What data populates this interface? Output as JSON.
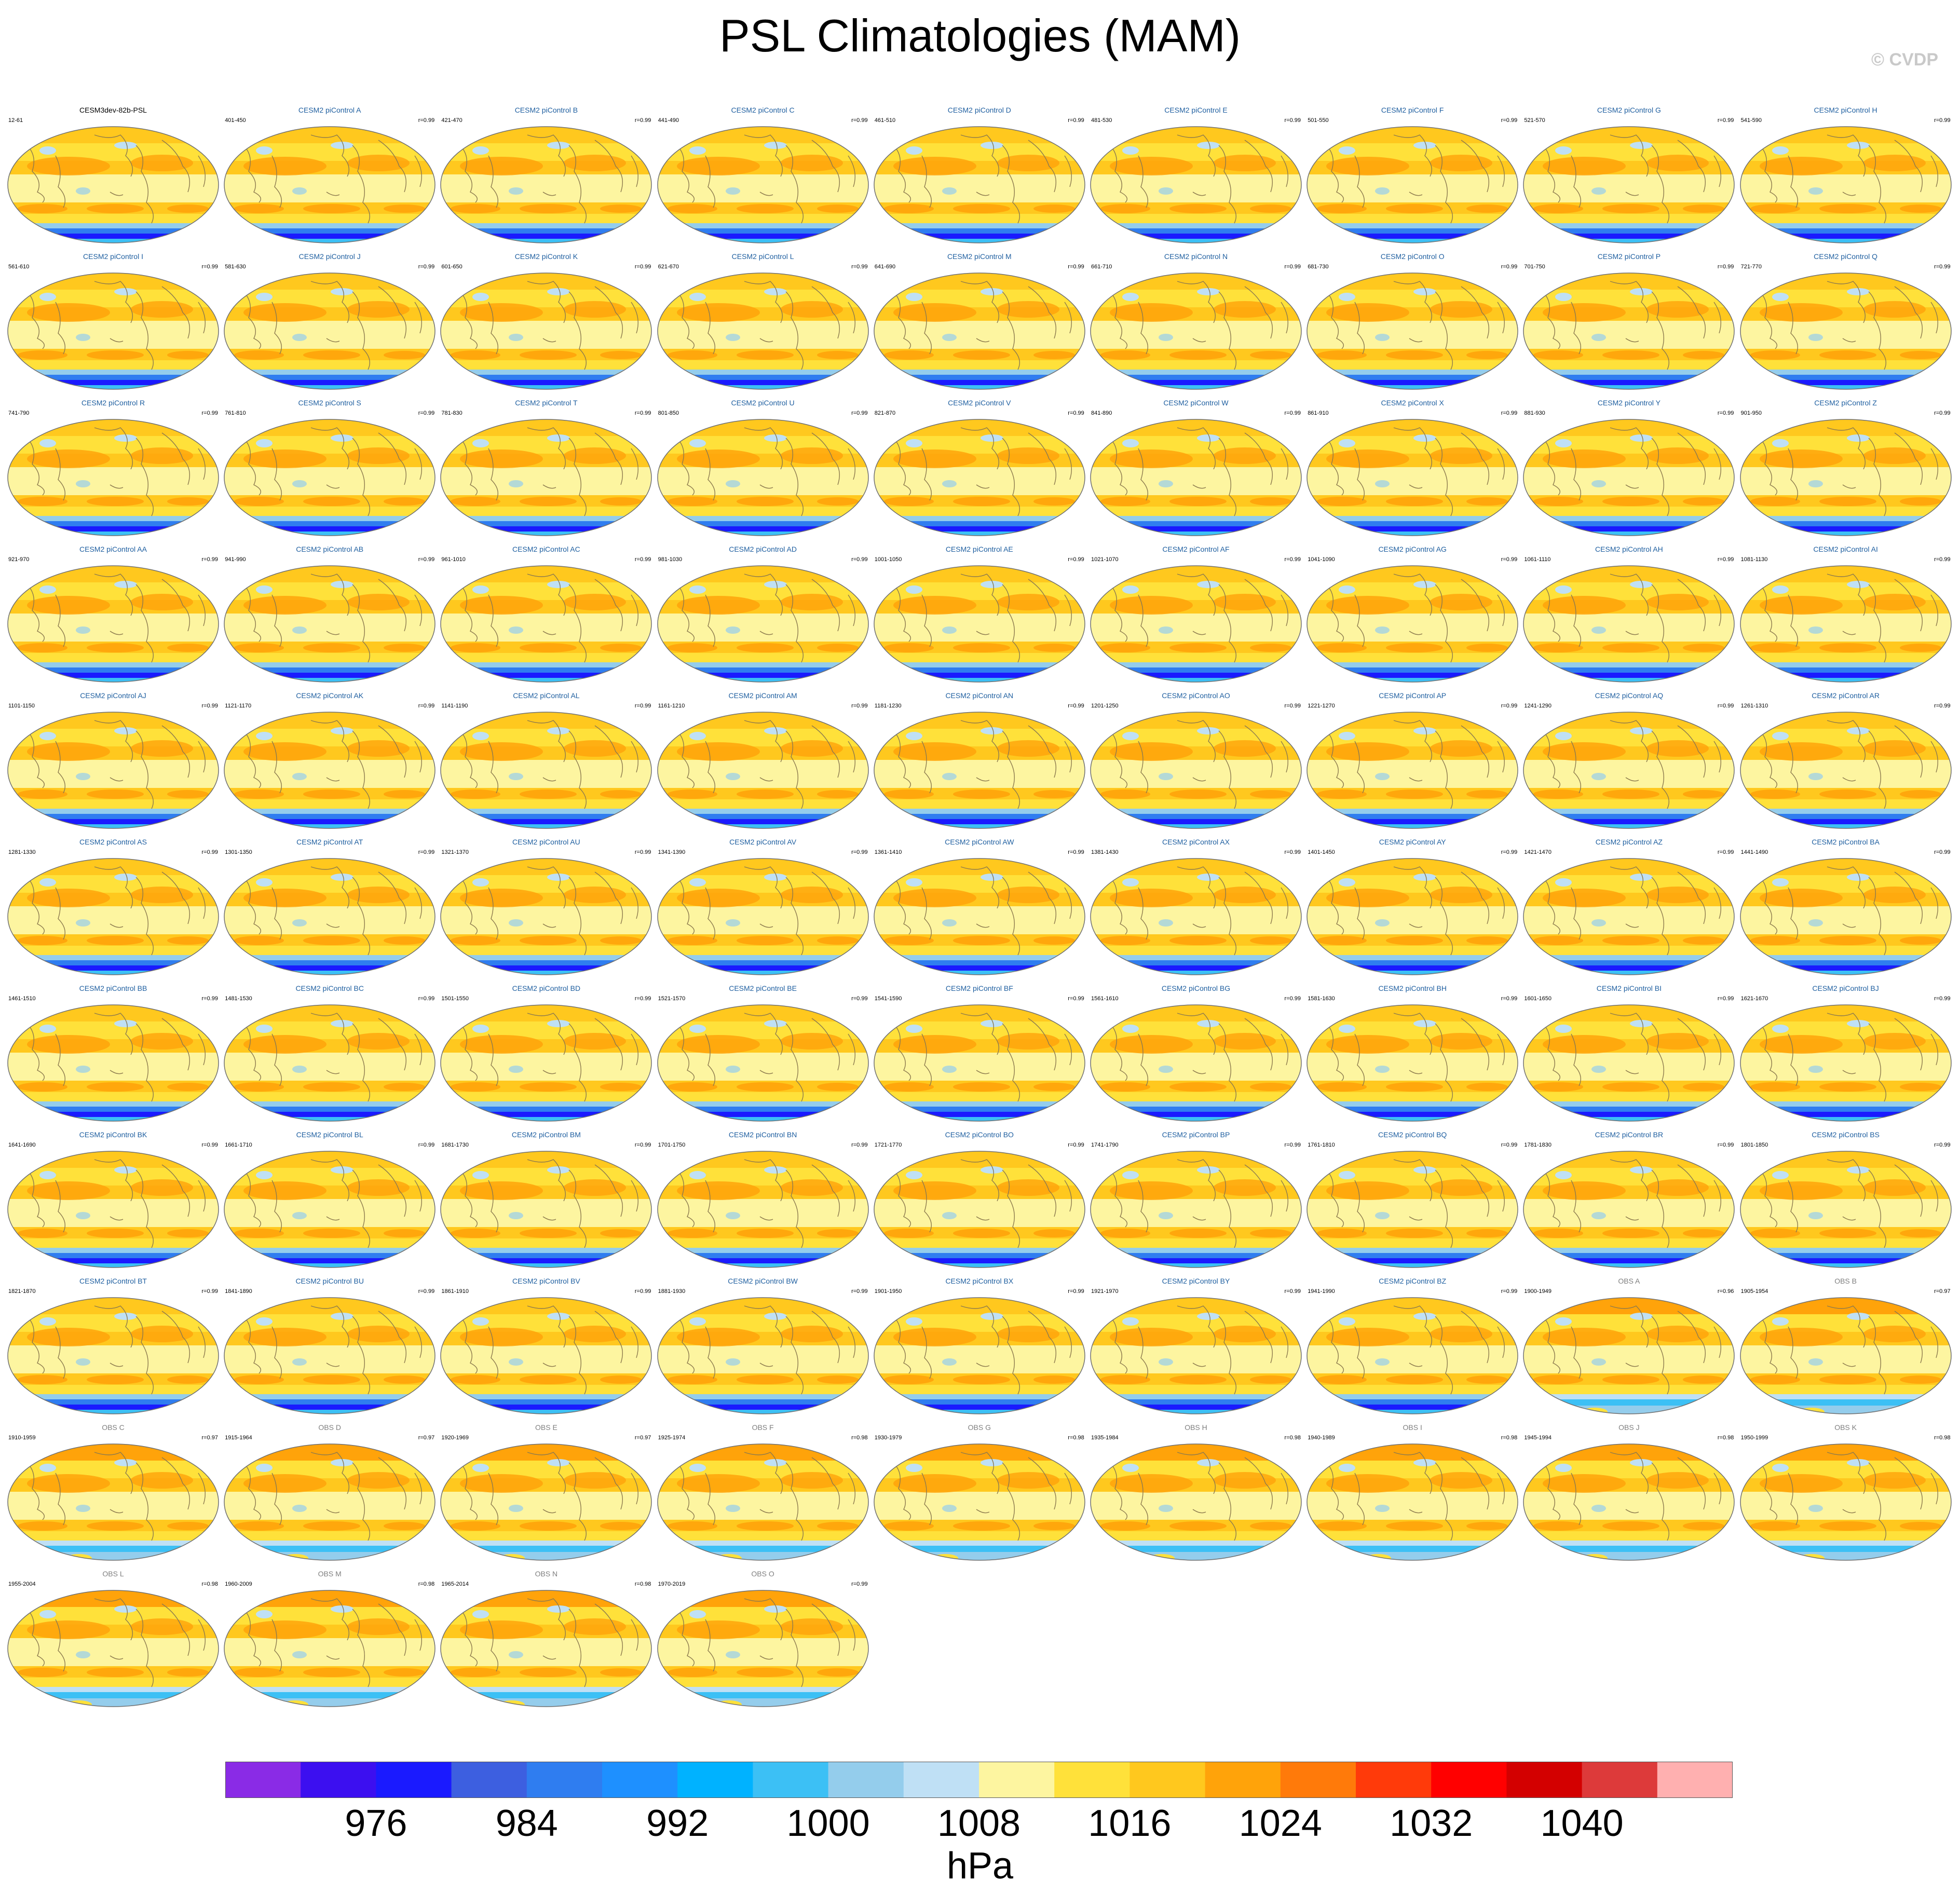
{
  "title": "PSL Climatologies (MAM)",
  "copyright": "© CVDP",
  "colors": {
    "model_title": "#1f5fa0",
    "base_title": "#000000",
    "obs_title": "#7f7f7f",
    "coast": "#8c7a4e"
  },
  "chart_data": {
    "type": "map-panels",
    "variable": "PSL",
    "season": "MAM",
    "units": "hPa",
    "colorbar": {
      "levels": [
        972,
        976,
        980,
        984,
        988,
        992,
        996,
        1000,
        1004,
        1008,
        1012,
        1016,
        1020,
        1024,
        1028,
        1032,
        1036,
        1040,
        1044
      ],
      "tick_labels": [
        "976",
        "984",
        "992",
        "1000",
        "1008",
        "1016",
        "1024",
        "1032",
        "1040"
      ],
      "tick_values": [
        976,
        984,
        992,
        1000,
        1008,
        1016,
        1024,
        1032,
        1040
      ],
      "colors": [
        "#8a2be6",
        "#3c0ff0",
        "#1a1aff",
        "#3d5fe0",
        "#2f7df0",
        "#1e90ff",
        "#00b2ff",
        "#3cc0f5",
        "#94cdec",
        "#bfe0f5",
        "#fdf5a0",
        "#ffe13a",
        "#ffc81e",
        "#ffa30a",
        "#ff7a0a",
        "#ff3a0a",
        "#ff0000",
        "#d30000",
        "#dd3a3a",
        "#ffb0b0"
      ]
    },
    "panels": [
      {
        "name": "CESM3dev-82b-PSL",
        "years": "12-61",
        "r": "",
        "kind": "base"
      },
      {
        "name": "CESM2 piControl A",
        "years": "401-450",
        "r": "r=0.99",
        "kind": "model"
      },
      {
        "name": "CESM2 piControl B",
        "years": "421-470",
        "r": "r=0.99",
        "kind": "model"
      },
      {
        "name": "CESM2 piControl C",
        "years": "441-490",
        "r": "r=0.99",
        "kind": "model"
      },
      {
        "name": "CESM2 piControl D",
        "years": "461-510",
        "r": "r=0.99",
        "kind": "model"
      },
      {
        "name": "CESM2 piControl E",
        "years": "481-530",
        "r": "r=0.99",
        "kind": "model"
      },
      {
        "name": "CESM2 piControl F",
        "years": "501-550",
        "r": "r=0.99",
        "kind": "model"
      },
      {
        "name": "CESM2 piControl G",
        "years": "521-570",
        "r": "r=0.99",
        "kind": "model"
      },
      {
        "name": "CESM2 piControl H",
        "years": "541-590",
        "r": "r=0.99",
        "kind": "model"
      },
      {
        "name": "CESM2 piControl I",
        "years": "561-610",
        "r": "r=0.99",
        "kind": "model"
      },
      {
        "name": "CESM2 piControl J",
        "years": "581-630",
        "r": "r=0.99",
        "kind": "model"
      },
      {
        "name": "CESM2 piControl K",
        "years": "601-650",
        "r": "r=0.99",
        "kind": "model"
      },
      {
        "name": "CESM2 piControl L",
        "years": "621-670",
        "r": "r=0.99",
        "kind": "model"
      },
      {
        "name": "CESM2 piControl M",
        "years": "641-690",
        "r": "r=0.99",
        "kind": "model"
      },
      {
        "name": "CESM2 piControl N",
        "years": "661-710",
        "r": "r=0.99",
        "kind": "model"
      },
      {
        "name": "CESM2 piControl O",
        "years": "681-730",
        "r": "r=0.99",
        "kind": "model"
      },
      {
        "name": "CESM2 piControl P",
        "years": "701-750",
        "r": "r=0.99",
        "kind": "model"
      },
      {
        "name": "CESM2 piControl Q",
        "years": "721-770",
        "r": "r=0.99",
        "kind": "model"
      },
      {
        "name": "CESM2 piControl R",
        "years": "741-790",
        "r": "r=0.99",
        "kind": "model"
      },
      {
        "name": "CESM2 piControl S",
        "years": "761-810",
        "r": "r=0.99",
        "kind": "model"
      },
      {
        "name": "CESM2 piControl T",
        "years": "781-830",
        "r": "r=0.99",
        "kind": "model"
      },
      {
        "name": "CESM2 piControl U",
        "years": "801-850",
        "r": "r=0.99",
        "kind": "model"
      },
      {
        "name": "CESM2 piControl V",
        "years": "821-870",
        "r": "r=0.99",
        "kind": "model"
      },
      {
        "name": "CESM2 piControl W",
        "years": "841-890",
        "r": "r=0.99",
        "kind": "model"
      },
      {
        "name": "CESM2 piControl X",
        "years": "861-910",
        "r": "r=0.99",
        "kind": "model"
      },
      {
        "name": "CESM2 piControl Y",
        "years": "881-930",
        "r": "r=0.99",
        "kind": "model"
      },
      {
        "name": "CESM2 piControl Z",
        "years": "901-950",
        "r": "r=0.99",
        "kind": "model"
      },
      {
        "name": "CESM2 piControl AA",
        "years": "921-970",
        "r": "r=0.99",
        "kind": "model"
      },
      {
        "name": "CESM2 piControl AB",
        "years": "941-990",
        "r": "r=0.99",
        "kind": "model"
      },
      {
        "name": "CESM2 piControl AC",
        "years": "961-1010",
        "r": "r=0.99",
        "kind": "model"
      },
      {
        "name": "CESM2 piControl AD",
        "years": "981-1030",
        "r": "r=0.99",
        "kind": "model"
      },
      {
        "name": "CESM2 piControl AE",
        "years": "1001-1050",
        "r": "r=0.99",
        "kind": "model"
      },
      {
        "name": "CESM2 piControl AF",
        "years": "1021-1070",
        "r": "r=0.99",
        "kind": "model"
      },
      {
        "name": "CESM2 piControl AG",
        "years": "1041-1090",
        "r": "r=0.99",
        "kind": "model"
      },
      {
        "name": "CESM2 piControl AH",
        "years": "1061-1110",
        "r": "r=0.99",
        "kind": "model"
      },
      {
        "name": "CESM2 piControl AI",
        "years": "1081-1130",
        "r": "r=0.99",
        "kind": "model"
      },
      {
        "name": "CESM2 piControl AJ",
        "years": "1101-1150",
        "r": "r=0.99",
        "kind": "model"
      },
      {
        "name": "CESM2 piControl AK",
        "years": "1121-1170",
        "r": "r=0.99",
        "kind": "model"
      },
      {
        "name": "CESM2 piControl AL",
        "years": "1141-1190",
        "r": "r=0.99",
        "kind": "model"
      },
      {
        "name": "CESM2 piControl AM",
        "years": "1161-1210",
        "r": "r=0.99",
        "kind": "model"
      },
      {
        "name": "CESM2 piControl AN",
        "years": "1181-1230",
        "r": "r=0.99",
        "kind": "model"
      },
      {
        "name": "CESM2 piControl AO",
        "years": "1201-1250",
        "r": "r=0.99",
        "kind": "model"
      },
      {
        "name": "CESM2 piControl AP",
        "years": "1221-1270",
        "r": "r=0.99",
        "kind": "model"
      },
      {
        "name": "CESM2 piControl AQ",
        "years": "1241-1290",
        "r": "r=0.99",
        "kind": "model"
      },
      {
        "name": "CESM2 piControl AR",
        "years": "1261-1310",
        "r": "r=0.99",
        "kind": "model"
      },
      {
        "name": "CESM2 piControl AS",
        "years": "1281-1330",
        "r": "r=0.99",
        "kind": "model"
      },
      {
        "name": "CESM2 piControl AT",
        "years": "1301-1350",
        "r": "r=0.99",
        "kind": "model"
      },
      {
        "name": "CESM2 piControl AU",
        "years": "1321-1370",
        "r": "r=0.99",
        "kind": "model"
      },
      {
        "name": "CESM2 piControl AV",
        "years": "1341-1390",
        "r": "r=0.99",
        "kind": "model"
      },
      {
        "name": "CESM2 piControl AW",
        "years": "1361-1410",
        "r": "r=0.99",
        "kind": "model"
      },
      {
        "name": "CESM2 piControl AX",
        "years": "1381-1430",
        "r": "r=0.99",
        "kind": "model"
      },
      {
        "name": "CESM2 piControl AY",
        "years": "1401-1450",
        "r": "r=0.99",
        "kind": "model"
      },
      {
        "name": "CESM2 piControl AZ",
        "years": "1421-1470",
        "r": "r=0.99",
        "kind": "model"
      },
      {
        "name": "CESM2 piControl BA",
        "years": "1441-1490",
        "r": "r=0.99",
        "kind": "model"
      },
      {
        "name": "CESM2 piControl BB",
        "years": "1461-1510",
        "r": "r=0.99",
        "kind": "model"
      },
      {
        "name": "CESM2 piControl BC",
        "years": "1481-1530",
        "r": "r=0.99",
        "kind": "model"
      },
      {
        "name": "CESM2 piControl BD",
        "years": "1501-1550",
        "r": "r=0.99",
        "kind": "model"
      },
      {
        "name": "CESM2 piControl BE",
        "years": "1521-1570",
        "r": "r=0.99",
        "kind": "model"
      },
      {
        "name": "CESM2 piControl BF",
        "years": "1541-1590",
        "r": "r=0.99",
        "kind": "model"
      },
      {
        "name": "CESM2 piControl BG",
        "years": "1561-1610",
        "r": "r=0.99",
        "kind": "model"
      },
      {
        "name": "CESM2 piControl BH",
        "years": "1581-1630",
        "r": "r=0.99",
        "kind": "model"
      },
      {
        "name": "CESM2 piControl BI",
        "years": "1601-1650",
        "r": "r=0.99",
        "kind": "model"
      },
      {
        "name": "CESM2 piControl BJ",
        "years": "1621-1670",
        "r": "r=0.99",
        "kind": "model"
      },
      {
        "name": "CESM2 piControl BK",
        "years": "1641-1690",
        "r": "r=0.99",
        "kind": "model"
      },
      {
        "name": "CESM2 piControl BL",
        "years": "1661-1710",
        "r": "r=0.99",
        "kind": "model"
      },
      {
        "name": "CESM2 piControl BM",
        "years": "1681-1730",
        "r": "r=0.99",
        "kind": "model"
      },
      {
        "name": "CESM2 piControl BN",
        "years": "1701-1750",
        "r": "r=0.99",
        "kind": "model"
      },
      {
        "name": "CESM2 piControl BO",
        "years": "1721-1770",
        "r": "r=0.99",
        "kind": "model"
      },
      {
        "name": "CESM2 piControl BP",
        "years": "1741-1790",
        "r": "r=0.99",
        "kind": "model"
      },
      {
        "name": "CESM2 piControl BQ",
        "years": "1761-1810",
        "r": "r=0.99",
        "kind": "model"
      },
      {
        "name": "CESM2 piControl BR",
        "years": "1781-1830",
        "r": "r=0.99",
        "kind": "model"
      },
      {
        "name": "CESM2 piControl BS",
        "years": "1801-1850",
        "r": "r=0.99",
        "kind": "model"
      },
      {
        "name": "CESM2 piControl BT",
        "years": "1821-1870",
        "r": "r=0.99",
        "kind": "model"
      },
      {
        "name": "CESM2 piControl BU",
        "years": "1841-1890",
        "r": "r=0.99",
        "kind": "model"
      },
      {
        "name": "CESM2 piControl BV",
        "years": "1861-1910",
        "r": "r=0.99",
        "kind": "model"
      },
      {
        "name": "CESM2 piControl BW",
        "years": "1881-1930",
        "r": "r=0.99",
        "kind": "model"
      },
      {
        "name": "CESM2 piControl BX",
        "years": "1901-1950",
        "r": "r=0.99",
        "kind": "model"
      },
      {
        "name": "CESM2 piControl BY",
        "years": "1921-1970",
        "r": "r=0.99",
        "kind": "model"
      },
      {
        "name": "CESM2 piControl BZ",
        "years": "1941-1990",
        "r": "r=0.99",
        "kind": "model"
      },
      {
        "name": "OBS A",
        "years": "1900-1949",
        "r": "r=0.96",
        "kind": "obs"
      },
      {
        "name": "OBS B",
        "years": "1905-1954",
        "r": "r=0.97",
        "kind": "obs"
      },
      {
        "name": "OBS C",
        "years": "1910-1959",
        "r": "r=0.97",
        "kind": "obs"
      },
      {
        "name": "OBS D",
        "years": "1915-1964",
        "r": "r=0.97",
        "kind": "obs"
      },
      {
        "name": "OBS E",
        "years": "1920-1969",
        "r": "r=0.97",
        "kind": "obs"
      },
      {
        "name": "OBS F",
        "years": "1925-1974",
        "r": "r=0.98",
        "kind": "obs"
      },
      {
        "name": "OBS G",
        "years": "1930-1979",
        "r": "r=0.98",
        "kind": "obs"
      },
      {
        "name": "OBS H",
        "years": "1935-1984",
        "r": "r=0.98",
        "kind": "obs"
      },
      {
        "name": "OBS I",
        "years": "1940-1989",
        "r": "r=0.98",
        "kind": "obs"
      },
      {
        "name": "OBS J",
        "years": "1945-1994",
        "r": "r=0.98",
        "kind": "obs"
      },
      {
        "name": "OBS K",
        "years": "1950-1999",
        "r": "r=0.98",
        "kind": "obs"
      },
      {
        "name": "OBS L",
        "years": "1955-2004",
        "r": "r=0.98",
        "kind": "obs"
      },
      {
        "name": "OBS M",
        "years": "1960-2009",
        "r": "r=0.98",
        "kind": "obs"
      },
      {
        "name": "OBS N",
        "years": "1965-2014",
        "r": "r=0.98",
        "kind": "obs"
      },
      {
        "name": "OBS O",
        "years": "1970-2019",
        "r": "r=0.99",
        "kind": "obs"
      }
    ]
  }
}
